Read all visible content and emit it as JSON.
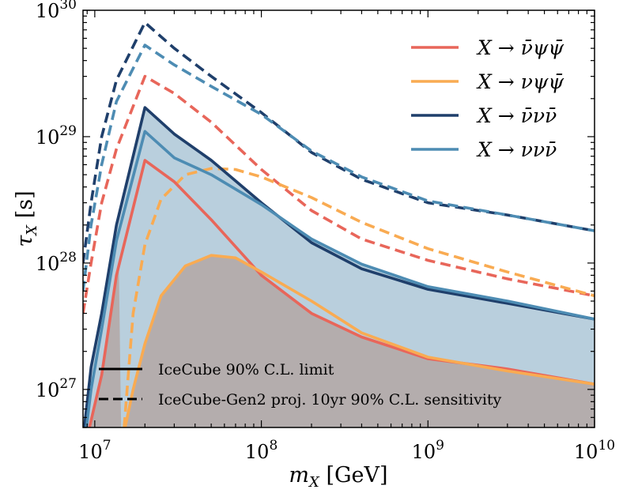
{
  "chart_data": {
    "type": "line",
    "xlabel": "m_X [GeV]",
    "ylabel": "τ_X [s]",
    "xscale": "log",
    "yscale": "log",
    "xlim": [
      8500000.0,
      10000000000.0
    ],
    "ylim": [
      5e+26,
      1e+30
    ],
    "xticks": [
      {
        "label": "10",
        "exp": "7"
      },
      {
        "label": "10",
        "exp": "8"
      },
      {
        "label": "10",
        "exp": "9"
      },
      {
        "label": "10",
        "exp": "10"
      }
    ],
    "yticks": [
      {
        "label": "10",
        "exp": "27"
      },
      {
        "label": "10",
        "exp": "28"
      },
      {
        "label": "10",
        "exp": "29"
      },
      {
        "label": "10",
        "exp": "30"
      }
    ],
    "series": [
      {
        "name": "X → ν̄ψψ̄",
        "color": "#e8665a",
        "limit_x": [
          8500000.0,
          9600000.0,
          11000000.0,
          13500000.0,
          20000000.0,
          30000000.0,
          50000000.0,
          100000000.0,
          200000000.0,
          400000000.0,
          1000000000.0,
          3000000000.0,
          10000000000.0
        ],
        "limit_y": [
          3e+26,
          6e+26,
          1.3e+27,
          8e+27,
          6.5e+28,
          4.4e+28,
          2.2e+28,
          8e+27,
          4e+27,
          2.6e+27,
          1.75e+27,
          1.45e+27,
          1.1e+27
        ],
        "sens_x": [
          8500000.0,
          9500000.0,
          11000000.0,
          13500000.0,
          20000000.0,
          30000000.0,
          50000000.0,
          100000000.0,
          200000000.0,
          400000000.0,
          1000000000.0,
          3000000000.0,
          10000000000.0
        ],
        "sens_y": [
          4e+27,
          1e+28,
          3e+28,
          8e+28,
          3e+29,
          2.2e+29,
          1.3e+29,
          5.5e+28,
          2.6e+28,
          1.55e+28,
          1.05e+28,
          7.5e+27,
          5.5e+27
        ]
      },
      {
        "name": "X → νψψ̄",
        "color": "#f9ab52",
        "limit_x": [
          14000000.0,
          17000000.0,
          20000000.0,
          25000000.0,
          35000000.0,
          50000000.0,
          70000000.0,
          100000000.0,
          200000000.0,
          400000000.0,
          1000000000.0,
          3000000000.0,
          10000000000.0
        ],
        "limit_y": [
          3e+26,
          1e+27,
          2.3e+27,
          5.5e+27,
          9.5e+27,
          1.15e+28,
          1.1e+28,
          8.5e+27,
          5e+27,
          2.8e+27,
          1.8e+27,
          1.4e+27,
          1.1e+27
        ],
        "sens_x": [
          15000000.0,
          17000000.0,
          20000000.0,
          25000000.0,
          35000000.0,
          50000000.0,
          70000000.0,
          100000000.0,
          200000000.0,
          400000000.0,
          1000000000.0,
          3000000000.0,
          10000000000.0
        ],
        "sens_y": [
          5e+26,
          4e+27,
          1.4e+28,
          3.2e+28,
          5e+28,
          5.6e+28,
          5.5e+28,
          4.8e+28,
          3.3e+28,
          2.1e+28,
          1.3e+28,
          8.5e+27,
          5.5e+27
        ]
      },
      {
        "name": "X → ν̄νν̄",
        "color": "#1f3f6b",
        "limit_x": [
          8500000.0,
          9500000.0,
          11000000.0,
          13500000.0,
          20000000.0,
          30000000.0,
          50000000.0,
          100000000.0,
          200000000.0,
          400000000.0,
          1000000000.0,
          3000000000.0,
          10000000000.0
        ],
        "limit_y": [
          4e+26,
          1.5e+27,
          4e+27,
          2e+28,
          1.7e+29,
          1.05e+29,
          6.5e+28,
          3e+28,
          1.45e+28,
          9e+27,
          6.2e+27,
          4.8e+27,
          3.6e+27
        ],
        "sens_x": [
          8500000.0,
          9500000.0,
          11000000.0,
          13500000.0,
          20000000.0,
          30000000.0,
          50000000.0,
          100000000.0,
          200000000.0,
          400000000.0,
          1000000000.0,
          3000000000.0,
          10000000000.0
        ],
        "sens_y": [
          1e+28,
          3e+28,
          1e+29,
          2.8e+29,
          8e+29,
          5e+29,
          3e+29,
          1.55e+29,
          7.5e+28,
          4.6e+28,
          3e+28,
          2.4e+28,
          1.8e+28
        ]
      },
      {
        "name": "X → ννν̄",
        "color": "#4d8cb3",
        "limit_x": [
          8500000.0,
          9500000.0,
          11000000.0,
          13500000.0,
          20000000.0,
          30000000.0,
          50000000.0,
          100000000.0,
          200000000.0,
          400000000.0,
          1000000000.0,
          3000000000.0,
          10000000000.0
        ],
        "limit_y": [
          3e+26,
          1e+27,
          3e+27,
          1.5e+28,
          1.1e+29,
          6.8e+28,
          5e+28,
          2.9e+28,
          1.55e+28,
          9.8e+27,
          6.5e+27,
          5e+27,
          3.6e+27
        ],
        "sens_x": [
          8500000.0,
          9500000.0,
          11000000.0,
          13500000.0,
          20000000.0,
          30000000.0,
          50000000.0,
          100000000.0,
          200000000.0,
          400000000.0,
          1000000000.0,
          3000000000.0,
          10000000000.0
        ],
        "sens_y": [
          6e+27,
          2e+28,
          6e+28,
          1.9e+29,
          5.3e+29,
          3.7e+29,
          2.5e+29,
          1.5e+29,
          7.7e+28,
          4.8e+28,
          3.1e+28,
          2.4e+28,
          1.8e+28
        ]
      }
    ],
    "legend": {
      "placement": "top-right",
      "entries": [
        {
          "label": "X → ν̄ψψ̄",
          "color": "#e8665a"
        },
        {
          "label": "X → νψψ̄",
          "color": "#f9ab52"
        },
        {
          "label": "X → ν̄νν̄",
          "color": "#1f3f6b"
        },
        {
          "label": "X → ννν̄",
          "color": "#4d8cb3"
        }
      ]
    },
    "style_legend": {
      "placement": "bottom-left",
      "solid_label": "IceCube 90% C.L. limit",
      "dashed_label": "IceCube-Gen2 proj. 10yr 90% C.L. sensitivity"
    },
    "fills": {
      "upper_color": "#b9cfdd",
      "lower_color": "#b4adad"
    }
  }
}
